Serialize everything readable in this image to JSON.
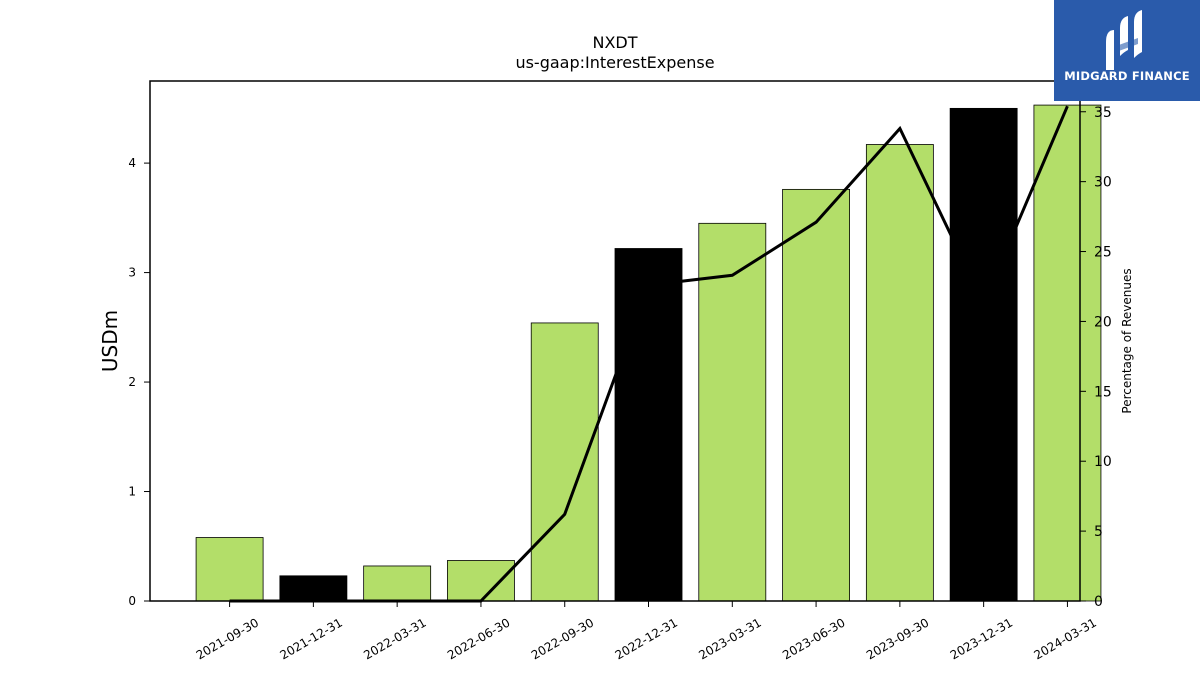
{
  "chart_data": {
    "type": "bar",
    "title": "NXDT",
    "subtitle": "us-gaap:InterestExpense",
    "ylabel": "USDm",
    "y2label": "Percentage of Revenues",
    "ylim": [
      0,
      4.75
    ],
    "y2lim": [
      0,
      37.2
    ],
    "yticks": [
      0,
      1,
      2,
      3,
      4
    ],
    "y2ticks": [
      0,
      5,
      10,
      15,
      20,
      25,
      30,
      35
    ],
    "categories": [
      "2021-09-30",
      "2021-12-31",
      "2022-03-31",
      "2022-06-30",
      "2022-09-30",
      "2022-12-31",
      "2023-03-31",
      "2023-06-30",
      "2023-09-30",
      "2023-12-31",
      "2024-03-31"
    ],
    "series": [
      {
        "type": "bar",
        "values": [
          0.58,
          0.23,
          0.32,
          0.37,
          2.54,
          3.22,
          3.45,
          3.76,
          4.17,
          4.5,
          4.53
        ],
        "colors": [
          "#b3de69",
          "#000000",
          "#b3de69",
          "#b3de69",
          "#b3de69",
          "#000000",
          "#b3de69",
          "#b3de69",
          "#b3de69",
          "#000000",
          "#b3de69"
        ]
      },
      {
        "type": "line",
        "axis": "right",
        "color": "#000000",
        "values": [
          0,
          0,
          0,
          0,
          6.2,
          22.6,
          23.3,
          27.1,
          33.8,
          21.3,
          35.4
        ]
      }
    ],
    "grid": false,
    "legend": "none"
  },
  "logo": {
    "text": "MIDGARD FINANCE",
    "bg_color": "#2a5bab",
    "icon": "midgard-logo-icon"
  }
}
